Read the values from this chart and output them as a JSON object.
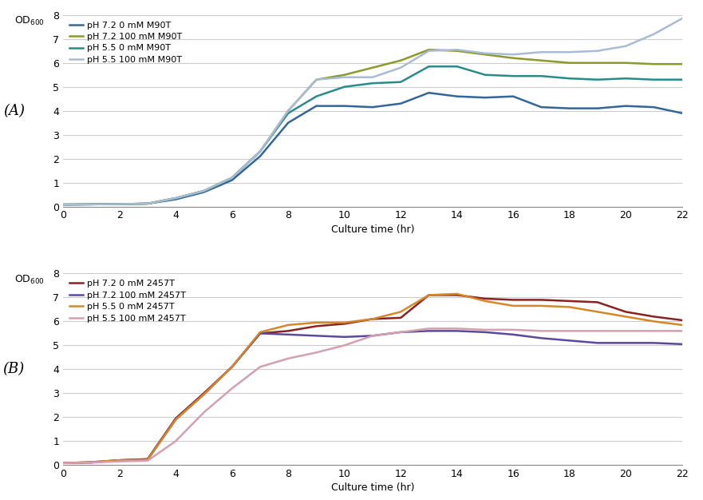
{
  "panel_A": {
    "title": "(A)",
    "series": [
      {
        "label": "pH 7.2 0 mM M90T",
        "color": "#336699",
        "x": [
          0,
          2,
          3,
          4,
          5,
          6,
          7,
          8,
          9,
          10,
          11,
          12,
          13,
          14,
          15,
          16,
          17,
          18,
          19,
          20,
          21,
          22
        ],
        "y": [
          0.08,
          0.1,
          0.12,
          0.3,
          0.6,
          1.1,
          2.1,
          3.5,
          4.2,
          4.2,
          4.15,
          4.3,
          4.75,
          4.6,
          4.55,
          4.6,
          4.15,
          4.1,
          4.1,
          4.2,
          4.15,
          3.9
        ]
      },
      {
        "label": "pH 7.2 100 mM M90T",
        "color": "#8B9A2A",
        "x": [
          0,
          2,
          3,
          4,
          5,
          6,
          7,
          8,
          9,
          10,
          11,
          12,
          13,
          14,
          15,
          16,
          17,
          18,
          19,
          20,
          21,
          22
        ],
        "y": [
          0.08,
          0.1,
          0.12,
          0.35,
          0.65,
          1.2,
          2.3,
          4.0,
          5.3,
          5.5,
          5.8,
          6.1,
          6.55,
          6.5,
          6.35,
          6.2,
          6.1,
          6.0,
          6.0,
          6.0,
          5.95,
          5.95
        ]
      },
      {
        "label": "pH 5.5 0 mM M90T",
        "color": "#2A8B8B",
        "x": [
          0,
          2,
          3,
          4,
          5,
          6,
          7,
          8,
          9,
          10,
          11,
          12,
          13,
          14,
          15,
          16,
          17,
          18,
          19,
          20,
          21,
          22
        ],
        "y": [
          0.08,
          0.1,
          0.12,
          0.35,
          0.65,
          1.2,
          2.3,
          3.9,
          4.6,
          5.0,
          5.15,
          5.2,
          5.85,
          5.85,
          5.5,
          5.45,
          5.45,
          5.35,
          5.3,
          5.35,
          5.3,
          5.3
        ]
      },
      {
        "label": "pH 5.5 100 mM M90T",
        "color": "#AABBD4",
        "x": [
          0,
          2,
          3,
          4,
          5,
          6,
          7,
          8,
          9,
          10,
          11,
          12,
          13,
          14,
          15,
          16,
          17,
          18,
          19,
          20,
          21,
          22
        ],
        "y": [
          0.08,
          0.1,
          0.12,
          0.35,
          0.65,
          1.2,
          2.3,
          4.0,
          5.3,
          5.4,
          5.4,
          5.8,
          6.5,
          6.55,
          6.4,
          6.35,
          6.45,
          6.45,
          6.5,
          6.7,
          7.2,
          7.85
        ]
      }
    ]
  },
  "panel_B": {
    "title": "(B)",
    "series": [
      {
        "label": "pH 7.2 0 mM 2457T",
        "color": "#8B2222",
        "x": [
          0,
          1,
          2,
          3,
          4,
          5,
          6,
          7,
          8,
          9,
          10,
          11,
          12,
          13,
          14,
          15,
          16,
          17,
          18,
          19,
          20,
          21,
          22
        ],
        "y": [
          0.08,
          0.12,
          0.2,
          0.25,
          1.95,
          3.0,
          4.1,
          5.5,
          5.6,
          5.8,
          5.9,
          6.1,
          6.15,
          7.1,
          7.1,
          6.95,
          6.9,
          6.9,
          6.85,
          6.8,
          6.4,
          6.2,
          6.05
        ]
      },
      {
        "label": "pH 7.2 100 mM 2457T",
        "color": "#5B4A9B",
        "x": [
          0,
          1,
          2,
          3,
          4,
          5,
          6,
          7,
          8,
          9,
          10,
          11,
          12,
          13,
          14,
          15,
          16,
          17,
          18,
          19,
          20,
          21,
          22
        ],
        "y": [
          0.08,
          0.1,
          0.2,
          0.22,
          1.9,
          2.95,
          4.1,
          5.5,
          5.45,
          5.4,
          5.35,
          5.4,
          5.55,
          5.6,
          5.6,
          5.55,
          5.45,
          5.3,
          5.2,
          5.1,
          5.1,
          5.1,
          5.05
        ]
      },
      {
        "label": "pH 5.5 0 mM 2457T",
        "color": "#D4882A",
        "x": [
          0,
          1,
          2,
          3,
          4,
          5,
          6,
          7,
          8,
          9,
          10,
          11,
          12,
          13,
          14,
          15,
          16,
          17,
          18,
          19,
          20,
          21,
          22
        ],
        "y": [
          0.08,
          0.12,
          0.2,
          0.22,
          1.9,
          2.95,
          4.1,
          5.55,
          5.85,
          5.95,
          5.95,
          6.1,
          6.4,
          7.1,
          7.15,
          6.85,
          6.65,
          6.65,
          6.6,
          6.4,
          6.2,
          6.0,
          5.85
        ]
      },
      {
        "label": "pH 5.5 100 mM 2457T",
        "color": "#D4A0B0",
        "x": [
          0,
          1,
          2,
          3,
          4,
          5,
          6,
          7,
          8,
          9,
          10,
          11,
          12,
          13,
          14,
          15,
          16,
          17,
          18,
          19,
          20,
          21,
          22
        ],
        "y": [
          0.08,
          0.1,
          0.15,
          0.18,
          1.0,
          2.2,
          3.2,
          4.1,
          4.45,
          4.7,
          5.0,
          5.4,
          5.55,
          5.7,
          5.7,
          5.65,
          5.65,
          5.6,
          5.6,
          5.6,
          5.6,
          5.6,
          5.6
        ]
      }
    ]
  },
  "xlim": [
    0,
    22
  ],
  "ylim": [
    0,
    8
  ],
  "yticks": [
    0,
    1,
    2,
    3,
    4,
    5,
    6,
    7,
    8
  ],
  "xticks": [
    0,
    2,
    4,
    6,
    8,
    10,
    12,
    14,
    16,
    18,
    20,
    22
  ],
  "xlabel": "Culture time (hr)",
  "ylabel": "OD₆₀₀",
  "background_color": "#ffffff",
  "grid_color": "#cccccc",
  "line_width": 1.8
}
